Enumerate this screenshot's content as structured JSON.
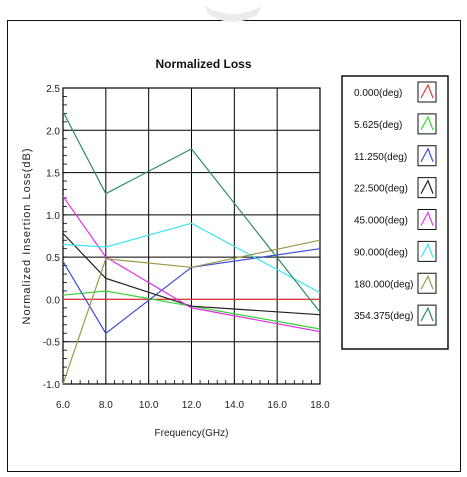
{
  "chart_data": {
    "type": "line",
    "title": "Normalized Loss",
    "xlabel": "Frequency(GHz)",
    "ylabel": "Normalized Insertion Loss(dB)",
    "xlim": [
      6.0,
      18.0
    ],
    "ylim": [
      -1.0,
      2.5
    ],
    "x_ticks": [
      "6.0",
      "8.0",
      "10.0",
      "12.0",
      "14.0",
      "16.0",
      "18.0"
    ],
    "y_ticks": [
      "-1.0",
      "-0.5",
      "0.0",
      "0.5",
      "1.0",
      "1.5",
      "2.0",
      "2.5"
    ],
    "grid": true,
    "legend_position": "right",
    "x": [
      6.0,
      8.0,
      12.0,
      18.0
    ],
    "series": [
      {
        "name": "0.000(deg)",
        "color": "#e23a3a",
        "values": [
          0.0,
          0.0,
          0.0,
          0.0
        ]
      },
      {
        "name": "5.625(deg)",
        "color": "#35d435",
        "values": [
          0.05,
          0.1,
          -0.08,
          -0.35
        ]
      },
      {
        "name": "11.250(deg)",
        "color": "#3b4fd8",
        "values": [
          0.45,
          -0.4,
          0.38,
          0.6
        ]
      },
      {
        "name": "22.500(deg)",
        "color": "#202020",
        "values": [
          0.78,
          0.25,
          -0.08,
          -0.18
        ]
      },
      {
        "name": "45.000(deg)",
        "color": "#e032e0",
        "values": [
          1.22,
          0.5,
          -0.1,
          -0.38
        ]
      },
      {
        "name": "90.000(deg)",
        "color": "#3fe6f0",
        "values": [
          0.65,
          0.62,
          0.9,
          0.08
        ]
      },
      {
        "name": "180.000(deg)",
        "color": "#9a9a4a",
        "values": [
          -1.0,
          0.48,
          0.38,
          0.7
        ]
      },
      {
        "name": "354.375(deg)",
        "color": "#2e8a6e",
        "values": [
          2.22,
          1.25,
          1.78,
          -0.15
        ]
      }
    ]
  }
}
